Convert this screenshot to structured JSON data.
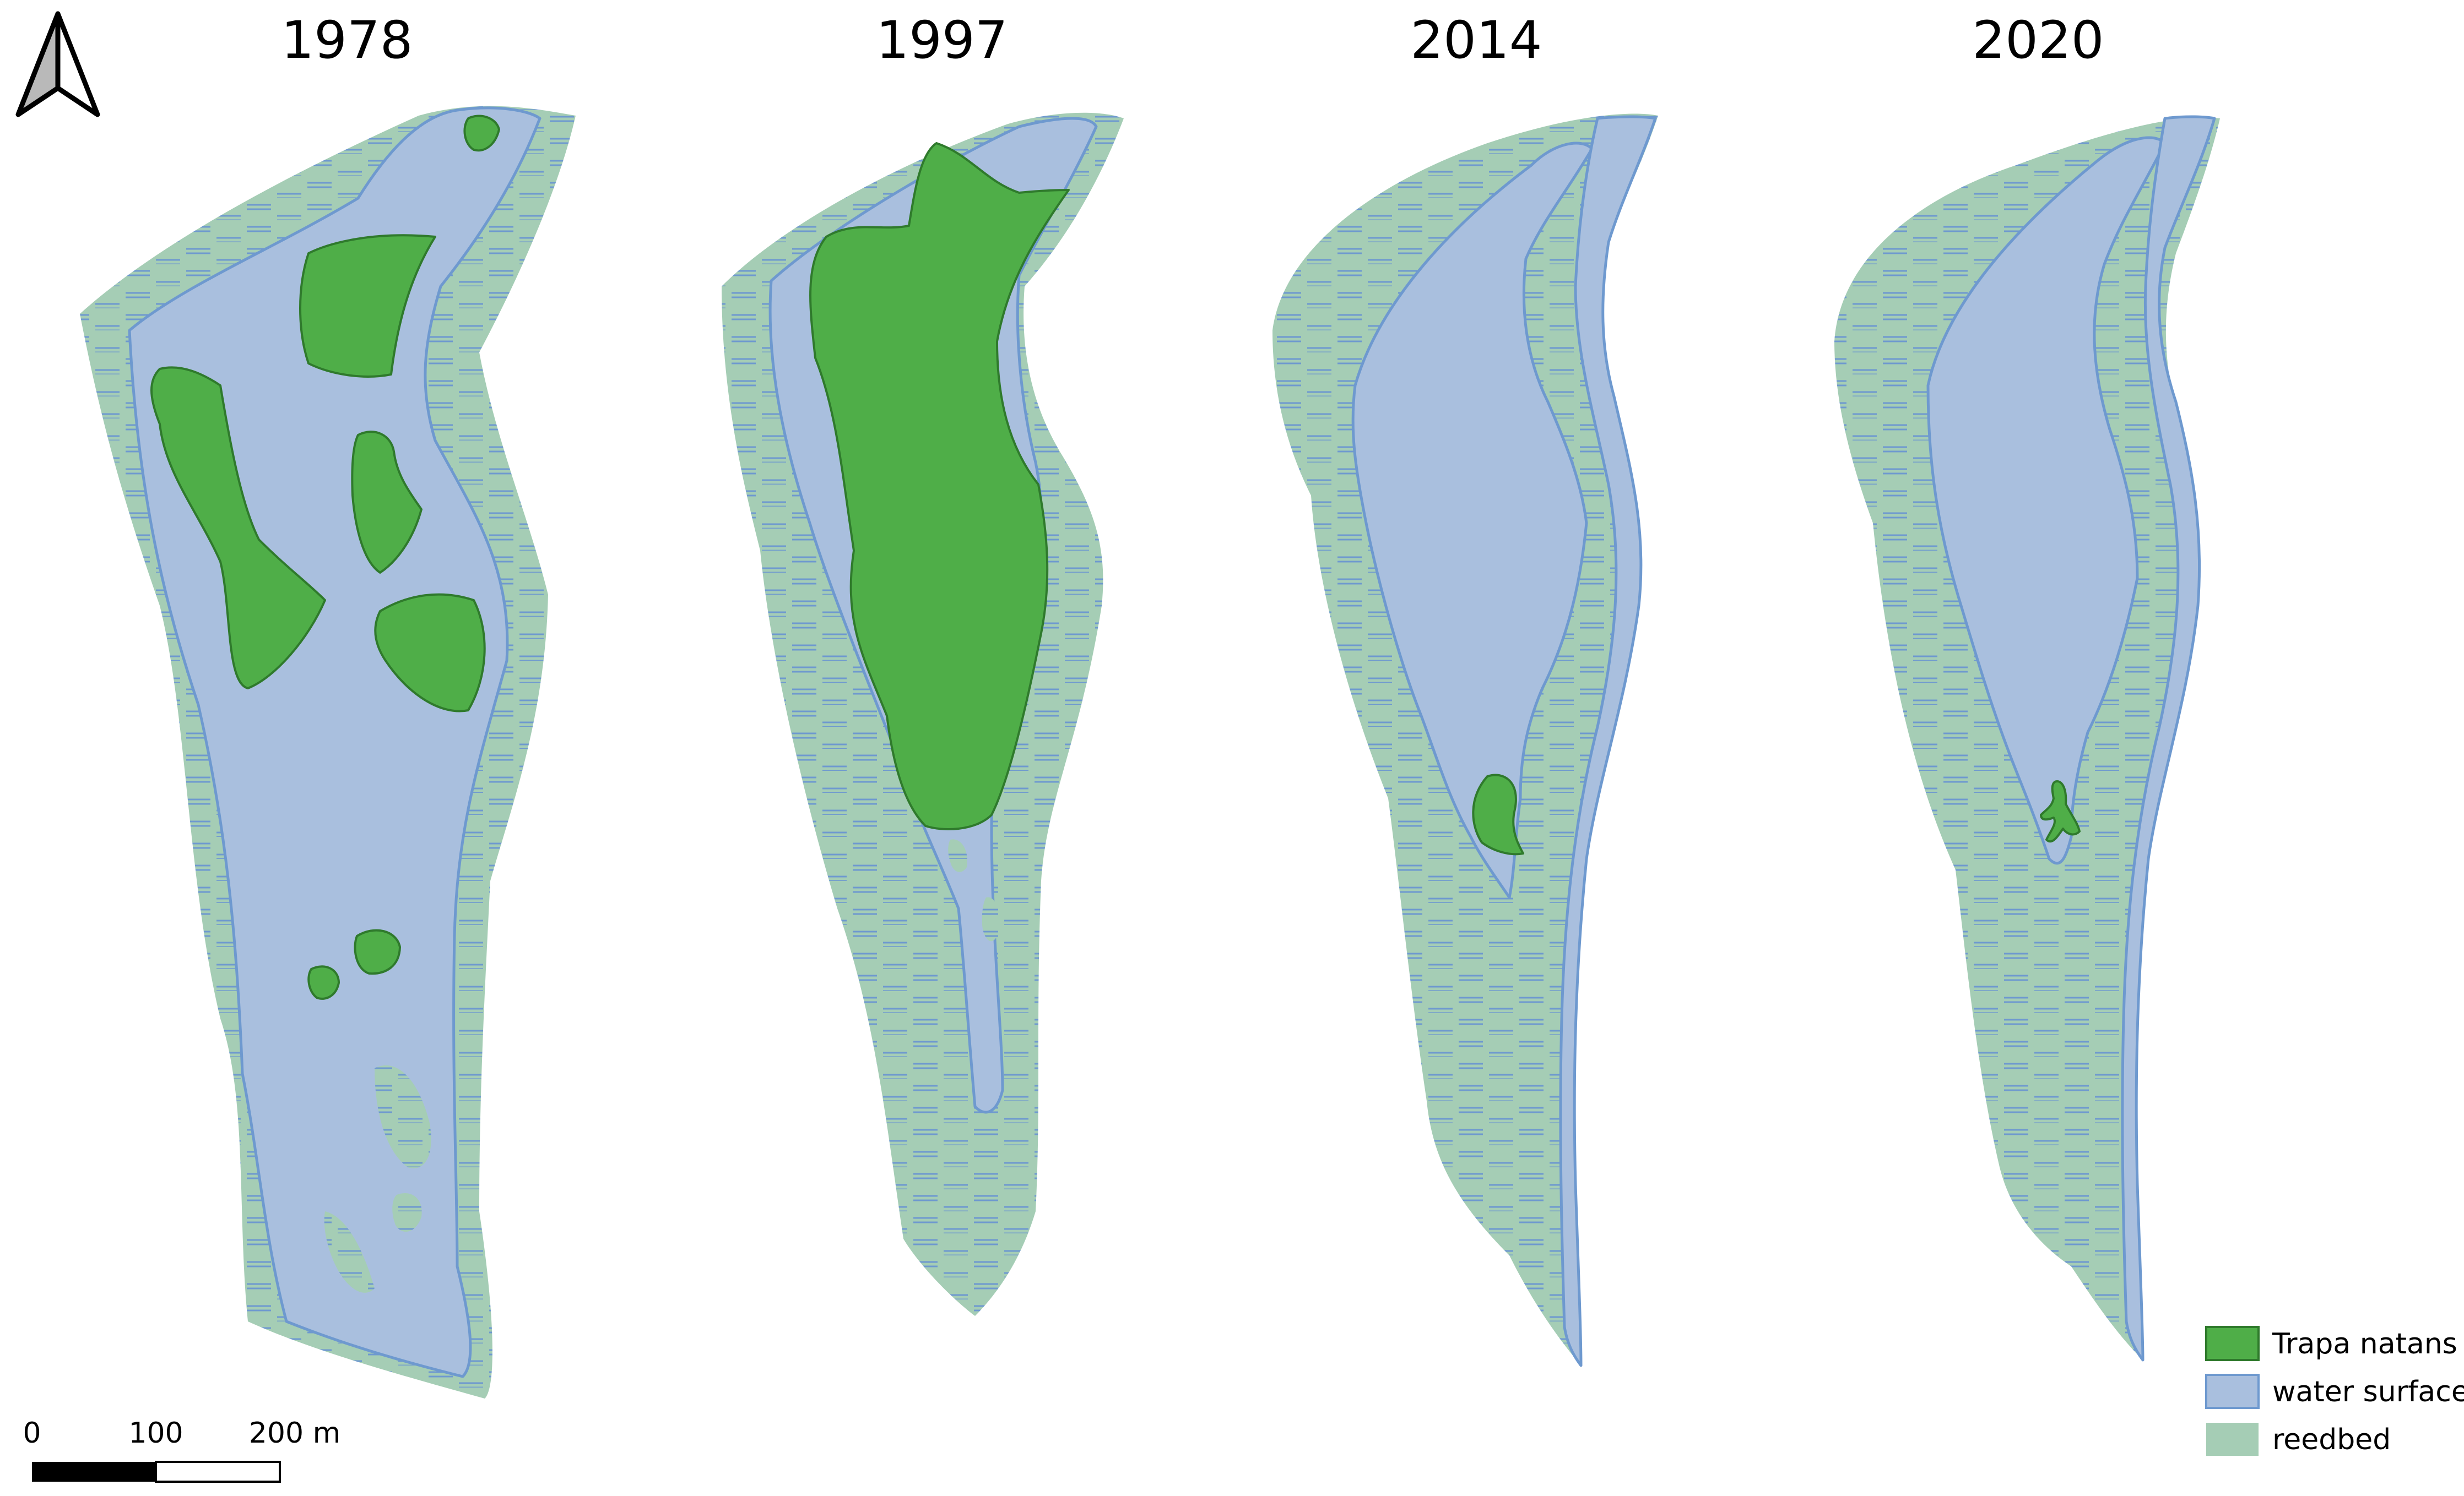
{
  "maps": [
    {
      "id": "map-1978",
      "year": "1978"
    },
    {
      "id": "map-1997",
      "year": "1997"
    },
    {
      "id": "map-2014",
      "year": "2014"
    },
    {
      "id": "map-2020",
      "year": "2020"
    }
  ],
  "legend": {
    "items": [
      {
        "key": "trapa",
        "label": "Trapa natans"
      },
      {
        "key": "water",
        "label": "water surface"
      },
      {
        "key": "reedbed",
        "label": "reedbed"
      }
    ]
  },
  "scale_bar": {
    "labels": [
      "0",
      "100",
      "200 m"
    ]
  },
  "north_arrow": {
    "icon": "north-arrow-icon"
  },
  "colors": {
    "trapa_fill": "#4fae48",
    "trapa_stroke": "#2f7a2c",
    "water_fill": "#a9bfde",
    "water_stroke": "#6e99cf",
    "reed_fill": "#a5cdb5",
    "reed_hatch": "#6e99cf"
  }
}
